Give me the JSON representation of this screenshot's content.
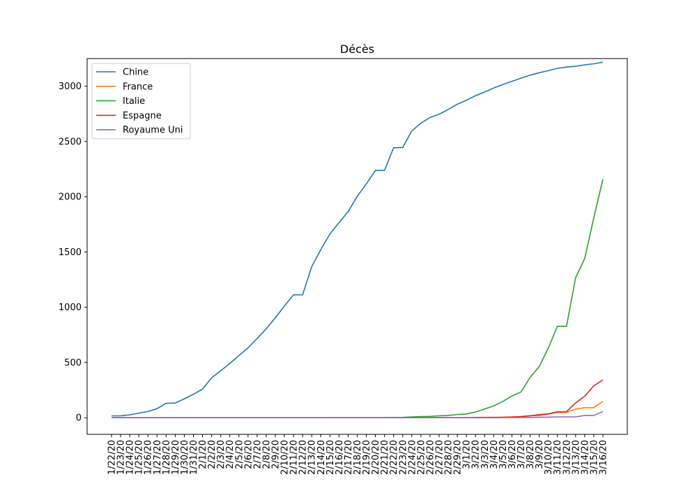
{
  "chart_data": {
    "type": "line",
    "title": "Décès",
    "xlabel": "",
    "ylabel": "",
    "ylim": [
      -150,
      3250
    ],
    "yticks": [
      0,
      500,
      1000,
      1500,
      2000,
      2500,
      3000
    ],
    "grid": false,
    "legend_position": "top-left",
    "x": [
      "1/22/20",
      "1/23/20",
      "1/24/20",
      "1/25/20",
      "1/26/20",
      "1/27/20",
      "1/28/20",
      "1/29/20",
      "1/30/20",
      "1/31/20",
      "2/1/20",
      "2/2/20",
      "2/3/20",
      "2/4/20",
      "2/5/20",
      "2/6/20",
      "2/7/20",
      "2/8/20",
      "2/9/20",
      "2/10/20",
      "2/11/20",
      "2/12/20",
      "2/13/20",
      "2/14/20",
      "2/15/20",
      "2/16/20",
      "2/17/20",
      "2/18/20",
      "2/19/20",
      "2/20/20",
      "2/21/20",
      "2/22/20",
      "2/23/20",
      "2/24/20",
      "2/25/20",
      "2/26/20",
      "2/27/20",
      "2/28/20",
      "2/29/20",
      "3/1/20",
      "3/2/20",
      "3/3/20",
      "3/4/20",
      "3/5/20",
      "3/6/20",
      "3/7/20",
      "3/8/20",
      "3/9/20",
      "3/10/20",
      "3/11/20",
      "3/12/20",
      "3/13/20",
      "3/14/20",
      "3/15/20",
      "3/16/20"
    ],
    "series": [
      {
        "name": "Chine",
        "color": "#1f77b4",
        "values": [
          17,
          18,
          26,
          42,
          56,
          82,
          131,
          133,
          171,
          213,
          259,
          361,
          425,
          490,
          562,
          632,
          717,
          804,
          904,
          1011,
          1112,
          1113,
          1367,
          1521,
          1663,
          1766,
          1864,
          2003,
          2116,
          2238,
          2238,
          2443,
          2445,
          2595,
          2665,
          2717,
          2746,
          2790,
          2837,
          2872,
          2914,
          2947,
          2983,
          3015,
          3044,
          3073,
          3099,
          3122,
          3140,
          3162,
          3173,
          3180,
          3193,
          3203,
          3217
        ]
      },
      {
        "name": "France",
        "color": "#ff7f0e",
        "values": [
          0,
          0,
          0,
          0,
          0,
          0,
          0,
          0,
          0,
          0,
          0,
          0,
          0,
          0,
          0,
          0,
          0,
          0,
          0,
          0,
          0,
          0,
          0,
          0,
          1,
          1,
          1,
          1,
          1,
          1,
          1,
          1,
          1,
          1,
          1,
          2,
          2,
          2,
          2,
          2,
          3,
          4,
          4,
          6,
          9,
          11,
          19,
          19,
          33,
          48,
          48,
          79,
          91,
          91,
          149
        ]
      },
      {
        "name": "Italie",
        "color": "#2ca02c",
        "values": [
          0,
          0,
          0,
          0,
          0,
          0,
          0,
          0,
          0,
          0,
          0,
          0,
          0,
          0,
          0,
          0,
          0,
          0,
          0,
          0,
          0,
          0,
          0,
          0,
          0,
          0,
          0,
          0,
          0,
          0,
          1,
          2,
          3,
          7,
          10,
          12,
          17,
          21,
          29,
          34,
          52,
          79,
          107,
          148,
          197,
          233,
          366,
          463,
          631,
          827,
          827,
          1266,
          1441,
          1809,
          2158
        ]
      },
      {
        "name": "Espagne",
        "color": "#d62728",
        "values": [
          0,
          0,
          0,
          0,
          0,
          0,
          0,
          0,
          0,
          0,
          0,
          0,
          0,
          0,
          0,
          0,
          0,
          0,
          0,
          0,
          0,
          0,
          0,
          0,
          0,
          0,
          0,
          0,
          0,
          0,
          0,
          0,
          0,
          0,
          0,
          0,
          0,
          0,
          0,
          0,
          0,
          1,
          2,
          3,
          5,
          10,
          17,
          28,
          35,
          54,
          55,
          133,
          195,
          289,
          342
        ]
      },
      {
        "name": "Royaume Uni",
        "color": "#9467bd",
        "values": [
          0,
          0,
          0,
          0,
          0,
          0,
          0,
          0,
          0,
          0,
          0,
          0,
          0,
          0,
          0,
          0,
          0,
          0,
          0,
          0,
          0,
          0,
          0,
          0,
          0,
          0,
          0,
          0,
          0,
          0,
          0,
          0,
          0,
          0,
          0,
          0,
          0,
          0,
          0,
          0,
          0,
          0,
          0,
          1,
          2,
          2,
          3,
          4,
          6,
          8,
          8,
          8,
          21,
          21,
          56
        ]
      }
    ]
  }
}
